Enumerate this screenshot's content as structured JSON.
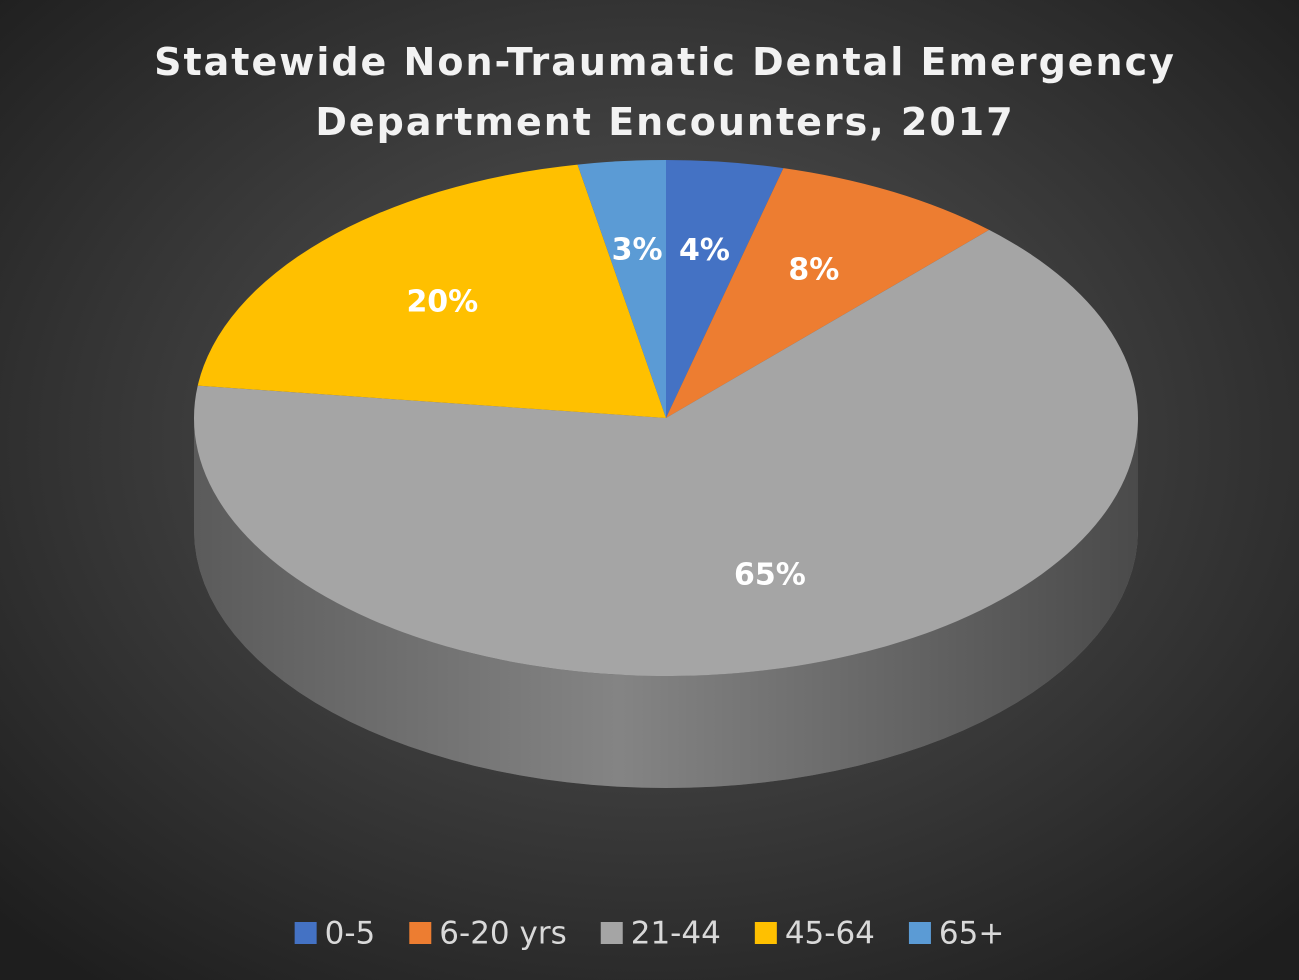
{
  "chart_data": {
    "type": "pie",
    "title": "Statewide Non-Traumatic Dental Emergency Department Encounters, 2017",
    "categories": [
      "0-5",
      "6-20 yrs",
      "21-44",
      "45-64",
      "65+"
    ],
    "values": [
      4,
      8,
      65,
      20,
      3
    ],
    "value_labels": [
      "4%",
      "8%",
      "65%",
      "20%",
      "3%"
    ],
    "colors": [
      "#4472c4",
      "#ed7d31",
      "#a5a5a5",
      "#ffc000",
      "#5b9bd5"
    ],
    "legend": "bottom"
  }
}
